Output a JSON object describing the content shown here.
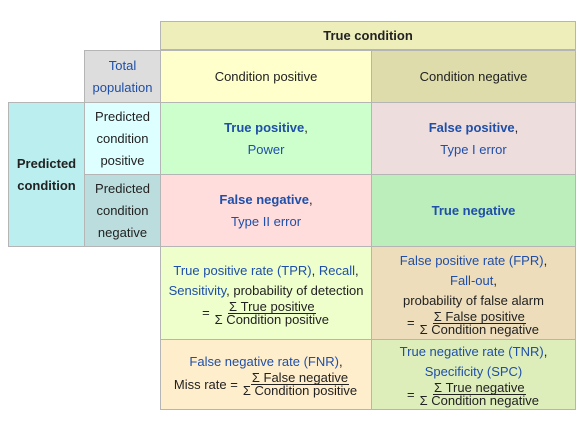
{
  "header": {
    "true_condition": "True condition",
    "predicted_condition": [
      "Predicted",
      "condition"
    ],
    "total_population": [
      "Total",
      "population"
    ],
    "condition_positive": "Condition positive",
    "condition_negative": "Condition negative",
    "pred_positive": [
      "Predicted",
      "condition",
      "positive"
    ],
    "pred_negative": [
      "Predicted",
      "condition",
      "negative"
    ]
  },
  "cells": {
    "tp": {
      "title": "True positive",
      "suffix": ",",
      "sub": "Power"
    },
    "fp": {
      "title": "False positive",
      "suffix": ",",
      "sub": "Type I error"
    },
    "fn": {
      "title": "False negative",
      "suffix": ",",
      "sub": "Type II error"
    },
    "tn": {
      "title": "True negative"
    }
  },
  "rates": {
    "tpr": {
      "line1_link": "True positive rate (TPR)",
      "line1_sep": ", ",
      "line1_link2": "Recall",
      "line1_end": ",",
      "line2_link": "Sensitivity",
      "line2_rest": ", probability of detection",
      "eq": "=",
      "num": "Σ True positive",
      "den": "Σ Condition positive"
    },
    "fpr": {
      "line1_link": "False positive rate (FPR)",
      "line1_end": ",",
      "line2_link": "Fall-out",
      "line2_end": ",",
      "line3": "probability of false alarm",
      "eq": "=",
      "num": "Σ False positive",
      "den": "Σ Condition negative"
    },
    "fnr": {
      "line1_link": "False negative rate (FNR)",
      "line1_end": ",",
      "label": "Miss rate =",
      "num": "Σ False negative",
      "den": "Σ Condition positive"
    },
    "tnr": {
      "line1_link": "True negative rate (TNR)",
      "line1_end": ",",
      "line2_link": "Specificity (SPC)",
      "eq": "=",
      "num": "Σ True negative",
      "den": "Σ Condition negative"
    }
  },
  "colors": {
    "true_condition_bg": "#eeeebb",
    "predicted_bg": "#bbeeee",
    "total_pop_bg": "#dddddd",
    "cond_pos_bg": "#ffffcc",
    "cond_neg_bg": "#dddcaa",
    "pred_row_bg": "#ddffff",
    "pred_neg_bg": "#bcdddd",
    "tp_bg": "#ccffcc",
    "fp_bg": "#eedddd",
    "fn_bg": "#ffdddd",
    "tn_bg": "#bbeebb",
    "tpr_bg": "#eeffcc",
    "fpr_bg": "#eeddbb",
    "fnr_bg": "#ffeecc",
    "tnr_bg": "#ddeebb"
  }
}
